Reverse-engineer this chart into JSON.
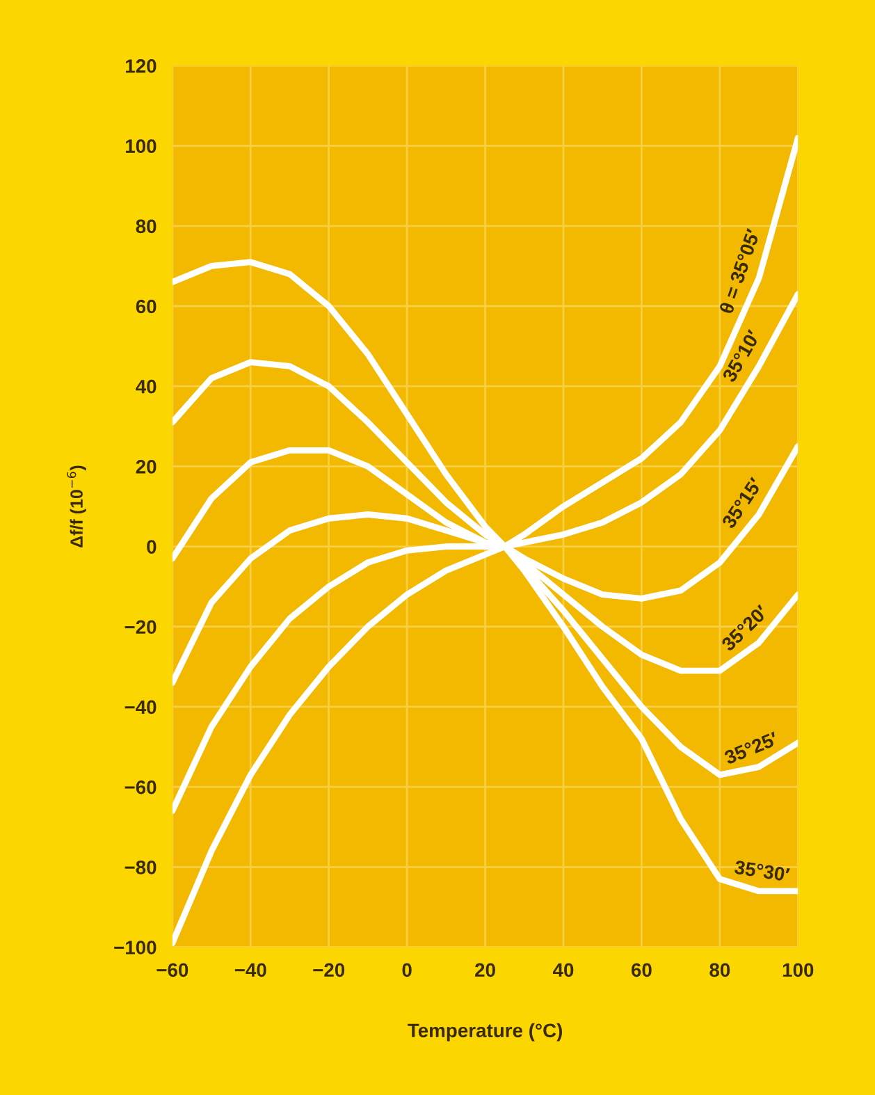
{
  "chart_data": {
    "type": "line",
    "xlabel": "Temperature (°C)",
    "ylabel": "Δf/f (10$^{−6}$)",
    "x": [
      -60,
      -50,
      -40,
      -30,
      -20,
      -10,
      0,
      10,
      20,
      25,
      30,
      40,
      50,
      60,
      70,
      80,
      90,
      100
    ],
    "series": [
      {
        "name": "θ = 35°05′",
        "color": "#ffffff",
        "values": [
          66,
          70,
          71,
          68,
          60,
          48,
          33,
          18,
          5,
          0,
          3,
          10,
          16,
          22,
          31,
          45,
          67,
          102
        ]
      },
      {
        "name": "35°10′",
        "color": "#ffffff",
        "values": [
          31,
          42,
          46,
          45,
          40,
          31,
          21,
          11,
          3,
          0,
          1,
          3,
          6,
          11,
          18,
          29,
          45,
          63
        ]
      },
      {
        "name": "35°15′",
        "color": "#ffffff",
        "values": [
          -3,
          12,
          21,
          24,
          24,
          20,
          13,
          6,
          1,
          0,
          -3,
          -8,
          -12,
          -13,
          -11,
          -4,
          8,
          25
        ]
      },
      {
        "name": "35°20′",
        "color": "#ffffff",
        "values": [
          -34,
          -14,
          -3,
          4,
          7,
          8,
          7,
          4,
          1,
          0,
          -4,
          -12,
          -20,
          -27,
          -31,
          -31,
          -24,
          -12
        ]
      },
      {
        "name": "35°25′",
        "color": "#ffffff",
        "values": [
          -66,
          -45,
          -30,
          -18,
          -10,
          -4,
          -1,
          0,
          0,
          0,
          -5,
          -16,
          -28,
          -40,
          -50,
          -57,
          -55,
          -49
        ]
      },
      {
        "name": "35°30′",
        "color": "#ffffff",
        "values": [
          -99,
          -76,
          -57,
          -42,
          -30,
          -20,
          -12,
          -6,
          -2,
          0,
          -6,
          -20,
          -35,
          -48,
          -68,
          -83,
          -86,
          -86
        ]
      }
    ],
    "xlim": [
      -60,
      100
    ],
    "ylim": [
      -100,
      120
    ],
    "xticks": [
      -60,
      -40,
      -20,
      0,
      20,
      40,
      60,
      80,
      100
    ],
    "yticks": [
      -100,
      -80,
      -60,
      -40,
      -20,
      0,
      20,
      40,
      60,
      80,
      100,
      120
    ],
    "grid": true,
    "marker": "none",
    "line_style": "solid",
    "legend": false
  }
}
